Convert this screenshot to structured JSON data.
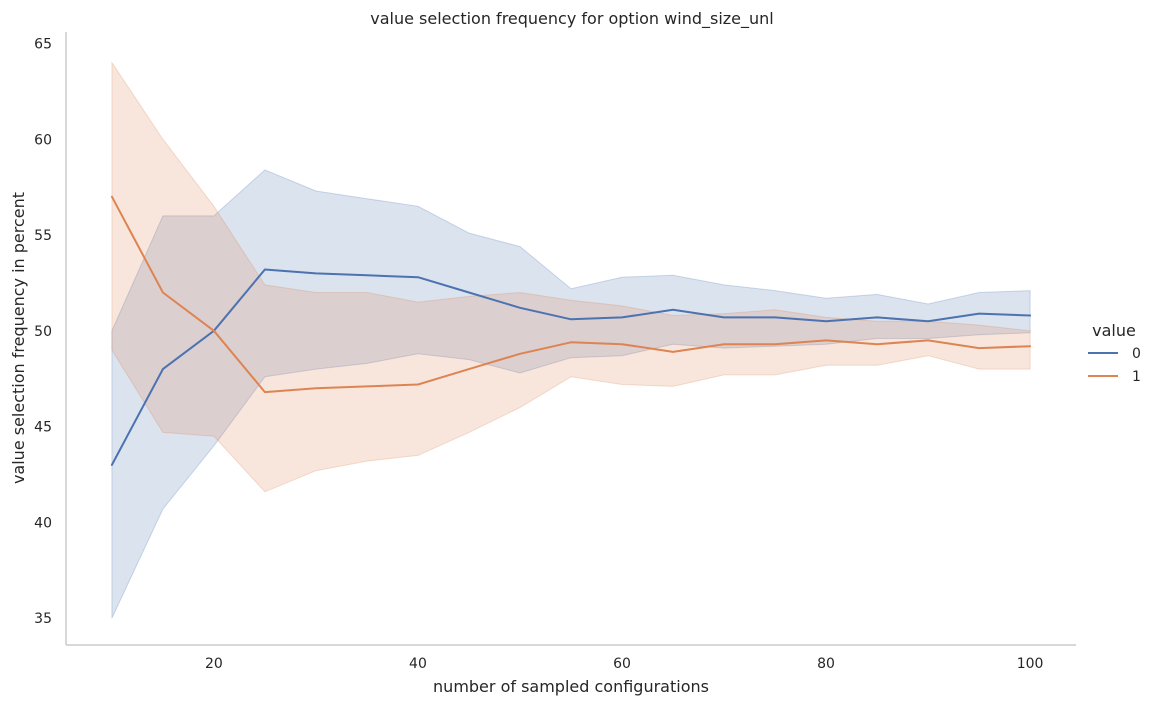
{
  "chart_data": {
    "type": "line",
    "title": "value selection frequency for option wind_size_unl",
    "xlabel": "number of sampled configurations",
    "ylabel": "value selection frequency in percent",
    "xlim": [
      5.5,
      104.5
    ],
    "ylim": [
      33.6,
      65.6
    ],
    "xticks": [
      20,
      40,
      60,
      80,
      100
    ],
    "yticks": [
      35,
      40,
      45,
      50,
      55,
      60,
      65
    ],
    "grid": false,
    "legend": {
      "title": "value",
      "placement": "right"
    },
    "x": [
      10,
      15,
      20,
      25,
      30,
      35,
      40,
      45,
      50,
      55,
      60,
      65,
      70,
      75,
      80,
      85,
      90,
      95,
      100
    ],
    "series": [
      {
        "name": "0",
        "color": "#4c72b0",
        "values": [
          43.0,
          48.0,
          50.0,
          53.2,
          53.0,
          52.9,
          52.8,
          52.0,
          51.2,
          50.6,
          50.7,
          51.1,
          50.7,
          50.7,
          50.5,
          50.7,
          50.5,
          50.9,
          50.8
        ],
        "ci_lower": [
          35.0,
          40.7,
          44.0,
          47.6,
          48.0,
          48.3,
          48.8,
          48.5,
          47.8,
          48.6,
          48.7,
          49.3,
          49.1,
          49.2,
          49.3,
          49.6,
          49.6,
          49.8,
          49.9
        ],
        "ci_upper": [
          50.0,
          56.0,
          56.0,
          58.4,
          57.3,
          56.9,
          56.5,
          55.1,
          54.4,
          52.2,
          52.8,
          52.9,
          52.4,
          52.1,
          51.7,
          51.9,
          51.4,
          52.0,
          52.1
        ]
      },
      {
        "name": "1",
        "color": "#dd8452",
        "values": [
          57.0,
          52.0,
          50.0,
          46.8,
          47.0,
          47.1,
          47.2,
          48.0,
          48.8,
          49.4,
          49.3,
          48.9,
          49.3,
          49.3,
          49.5,
          49.3,
          49.5,
          49.1,
          49.2
        ],
        "ci_lower": [
          49.0,
          44.7,
          44.5,
          41.6,
          42.7,
          43.2,
          43.5,
          44.7,
          46.0,
          47.6,
          47.2,
          47.1,
          47.7,
          47.7,
          48.2,
          48.2,
          48.7,
          48.0,
          48.0
        ],
        "ci_upper": [
          64.0,
          60.0,
          56.5,
          52.4,
          52.0,
          52.0,
          51.5,
          51.8,
          52.0,
          51.6,
          51.3,
          50.8,
          50.9,
          51.1,
          50.7,
          50.5,
          50.5,
          50.3,
          50.0
        ]
      }
    ]
  }
}
